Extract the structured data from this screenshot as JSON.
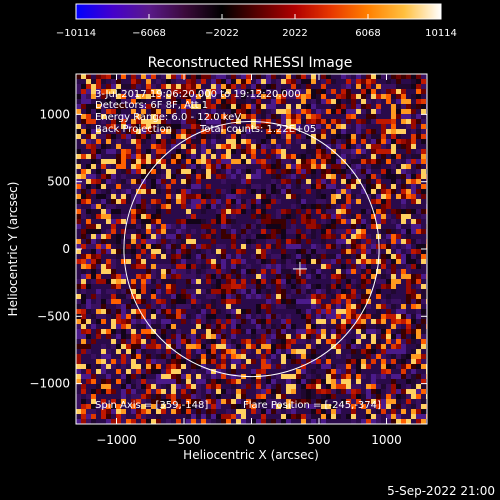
{
  "chart_data": {
    "type": "heatmap",
    "title": "Reconstructed RHESSI Image",
    "xlabel": "Heliocentric X (arcsec)",
    "ylabel": "Heliocentric Y (arcsec)",
    "xlim": [
      -1300,
      1300
    ],
    "ylim": [
      -1300,
      1300
    ],
    "xticks": [
      -1000,
      -500,
      0,
      500,
      1000
    ],
    "yticks": [
      -1000,
      -500,
      0,
      500,
      1000
    ],
    "xtick_labels": [
      "−1000",
      "−500",
      "0",
      "500",
      "1000"
    ],
    "ytick_labels": [
      "−1000",
      "−500",
      "0",
      "500",
      "1000"
    ],
    "colorbar": {
      "min": -10114,
      "max": 10114,
      "ticks": [
        -10114,
        -6068,
        -2022,
        2022,
        6068,
        10114
      ],
      "tick_labels": [
        "−10114",
        "−6068",
        "−2022",
        "2022",
        "6068",
        "10114"
      ],
      "colormap": [
        "#0000ff",
        "#4400cc",
        "#5a1a8a",
        "#3a0a3a",
        "#000000",
        "#5a0000",
        "#b00000",
        "#e83800",
        "#ff8000",
        "#ffc040",
        "#ffffff"
      ]
    },
    "annotations": [
      "3-Jul-2017 19:06:20.000 to 19:12:20.000",
      "Detectors: 6F 8F, Att 1",
      "Energy Range: 6.0 - 12.0 keV",
      "Back Projection",
      "Total counts: 1.22E+05",
      "Spin Axis = [359,-148]",
      "Flare Position = [-245,-374]"
    ],
    "limb": {
      "center": [
        0,
        0
      ],
      "radius": 945
    },
    "marker": {
      "x": 359,
      "y": -148,
      "shape": "cross"
    },
    "grid": false
  },
  "footer": {
    "timestamp": "5-Sep-2022 21:00"
  },
  "colors": {
    "background": "#000000",
    "foreground": "#ffffff",
    "limb": "#ffffff"
  }
}
